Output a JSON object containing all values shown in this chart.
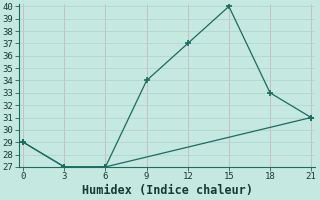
{
  "xlabel": "Humidex (Indice chaleur)",
  "background_color": "#c5e8e0",
  "grid_color": "#b0d8d0",
  "line_color": "#1a6b60",
  "line1_x": [
    0,
    3,
    6,
    9,
    12,
    15,
    18,
    21
  ],
  "line1_y": [
    29,
    27,
    27,
    34,
    37,
    40,
    33,
    31
  ],
  "line2_x": [
    0,
    3,
    6,
    21
  ],
  "line2_y": [
    29,
    27,
    27,
    31
  ],
  "xlim": [
    -0.3,
    21.3
  ],
  "ylim": [
    27,
    40.2
  ],
  "xticks": [
    0,
    3,
    6,
    9,
    12,
    15,
    18,
    21
  ],
  "yticks": [
    27,
    28,
    29,
    30,
    31,
    32,
    33,
    34,
    35,
    36,
    37,
    38,
    39,
    40
  ],
  "tick_fontsize": 6.5,
  "xlabel_fontsize": 8.5
}
